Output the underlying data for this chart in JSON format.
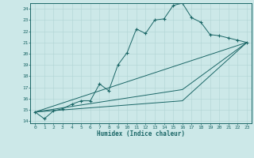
{
  "background_color": "#cce8e8",
  "grid_color": "#b0d4d4",
  "line_color": "#1a6666",
  "marker": "+",
  "xlabel": "Humidex (Indice chaleur)",
  "xlim": [
    -0.5,
    23.5
  ],
  "ylim": [
    13.8,
    24.5
  ],
  "yticks": [
    14,
    15,
    16,
    17,
    18,
    19,
    20,
    21,
    22,
    23,
    24
  ],
  "xticks": [
    0,
    1,
    2,
    3,
    4,
    5,
    6,
    7,
    8,
    9,
    10,
    11,
    12,
    13,
    14,
    15,
    16,
    17,
    18,
    19,
    20,
    21,
    22,
    23
  ],
  "lines": [
    {
      "x": [
        0,
        1,
        2,
        3,
        4,
        5,
        6,
        7,
        8,
        9,
        10,
        11,
        12,
        13,
        14,
        15,
        16,
        17,
        18,
        19,
        20,
        21,
        22,
        23
      ],
      "y": [
        14.8,
        14.2,
        14.9,
        15.1,
        15.5,
        15.8,
        15.8,
        17.3,
        16.7,
        19.0,
        20.1,
        22.2,
        21.8,
        23.0,
        23.1,
        24.3,
        24.5,
        23.2,
        22.8,
        21.7,
        21.6,
        21.4,
        21.2,
        21.0
      ],
      "has_markers": true
    },
    {
      "x": [
        0,
        23
      ],
      "y": [
        14.8,
        21.0
      ],
      "has_markers": false
    },
    {
      "x": [
        0,
        16,
        23
      ],
      "y": [
        14.8,
        15.8,
        21.0
      ],
      "has_markers": false
    },
    {
      "x": [
        0,
        16,
        23
      ],
      "y": [
        14.8,
        16.8,
        21.0
      ],
      "has_markers": false
    }
  ]
}
